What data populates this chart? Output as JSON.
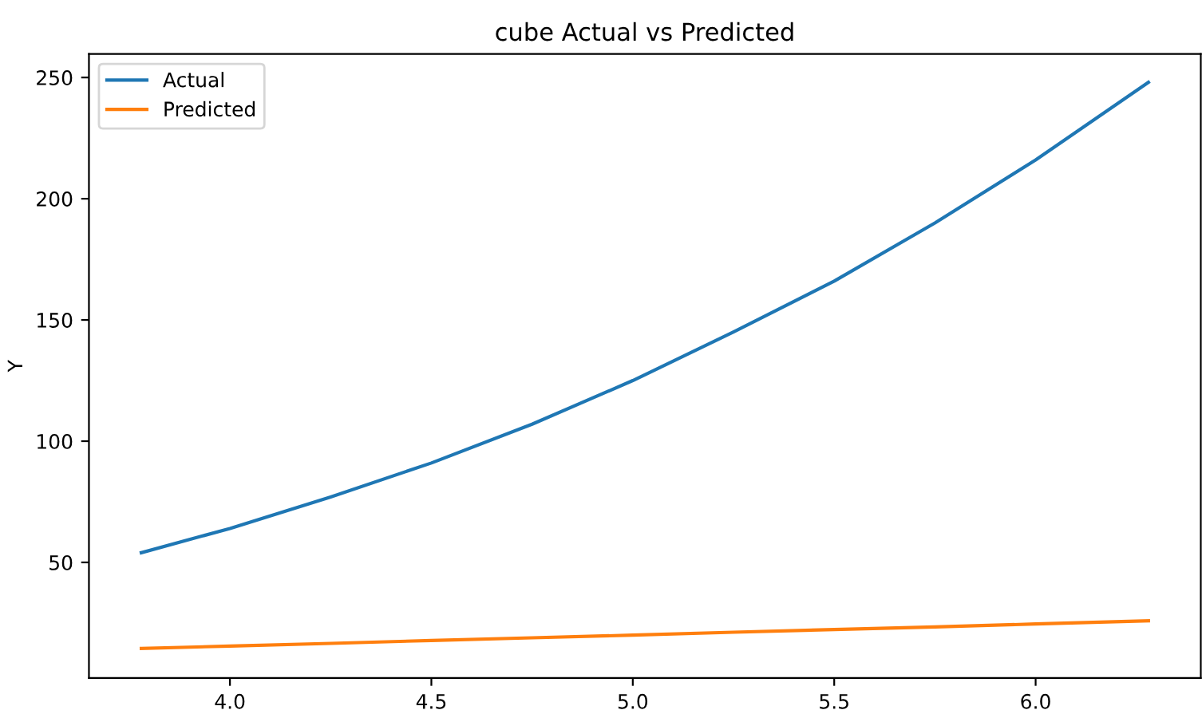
{
  "chart_data": {
    "type": "line",
    "title": "cube Actual vs Predicted",
    "ylabel": "Y",
    "xlim": [
      3.65,
      6.41
    ],
    "xticks": [
      {
        "value": 4.0,
        "label": "4.0"
      },
      {
        "value": 4.5,
        "label": "4.5"
      },
      {
        "value": 5.0,
        "label": "5.0"
      },
      {
        "value": 5.5,
        "label": "5.5"
      },
      {
        "value": 6.0,
        "label": "6.0"
      }
    ],
    "ylim": [
      2.3,
      259.7
    ],
    "yticks": [
      50,
      100,
      150,
      200,
      250
    ],
    "x": [
      3.78,
      4.0,
      4.25,
      4.5,
      4.75,
      5.0,
      5.25,
      5.5,
      5.75,
      6.0,
      6.28
    ],
    "series": [
      {
        "name": "Actual",
        "color": "#1f77b4",
        "values": [
          54,
          64,
          77,
          91,
          107,
          125,
          145,
          166,
          190,
          216,
          248
        ]
      },
      {
        "name": "Predicted",
        "color": "#ff7f0e",
        "values": [
          14.5,
          15.5,
          16.6,
          17.8,
          18.9,
          20.0,
          21.2,
          22.3,
          23.4,
          24.6,
          25.9
        ]
      }
    ],
    "legend": "top left",
    "grid": false
  }
}
